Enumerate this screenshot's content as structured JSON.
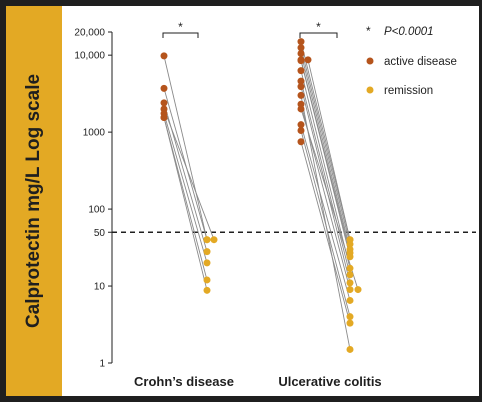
{
  "chart_data": {
    "type": "scatter",
    "scale": "log",
    "ylabel": "Calprotectin mg/L Log scale",
    "categories": [
      "Crohn’s disease",
      "Ulcerative colitis"
    ],
    "y_ticks": [
      {
        "value": 20000,
        "label": "20,000"
      },
      {
        "value": 10000,
        "label": "10,000"
      },
      {
        "value": 1000,
        "label": "1000"
      },
      {
        "value": 100,
        "label": "100"
      },
      {
        "value": 50,
        "label": "50"
      },
      {
        "value": 10,
        "label": "10"
      },
      {
        "value": 1,
        "label": "1"
      }
    ],
    "ylim": [
      1,
      20000
    ],
    "threshold": 50,
    "significance_marker": "*",
    "legend": {
      "note_symbol": "*",
      "note_text": "P<0.0001",
      "entries": [
        {
          "label": "active disease",
          "color": "#b5541c"
        },
        {
          "label": "remission",
          "color": "#e3a924"
        }
      ]
    },
    "groups": [
      {
        "name": "Crohn’s disease",
        "pairs": [
          [
            9800,
            40
          ],
          [
            3700,
            40
          ],
          [
            2400,
            28
          ],
          [
            2000,
            40
          ],
          [
            1750,
            20
          ],
          [
            1550,
            12
          ],
          [
            1550,
            8.8
          ]
        ]
      },
      {
        "name": "Ulcerative colitis",
        "pairs": [
          [
            15000,
            40
          ],
          [
            12500,
            35
          ],
          [
            10500,
            30
          ],
          [
            8700,
            27
          ],
          [
            8700,
            40
          ],
          [
            8500,
            24
          ],
          [
            6300,
            17
          ],
          [
            4600,
            14
          ],
          [
            3900,
            11
          ],
          [
            2300,
            9
          ],
          [
            2000,
            9
          ],
          [
            1250,
            6.5
          ],
          [
            1050,
            4
          ],
          [
            750,
            3.3
          ],
          [
            3000,
            1.5
          ]
        ]
      }
    ]
  },
  "colors": {
    "active": "#b5541c",
    "remission": "#e3a924",
    "line": "#8a8a8a",
    "band": "#e3a924"
  }
}
